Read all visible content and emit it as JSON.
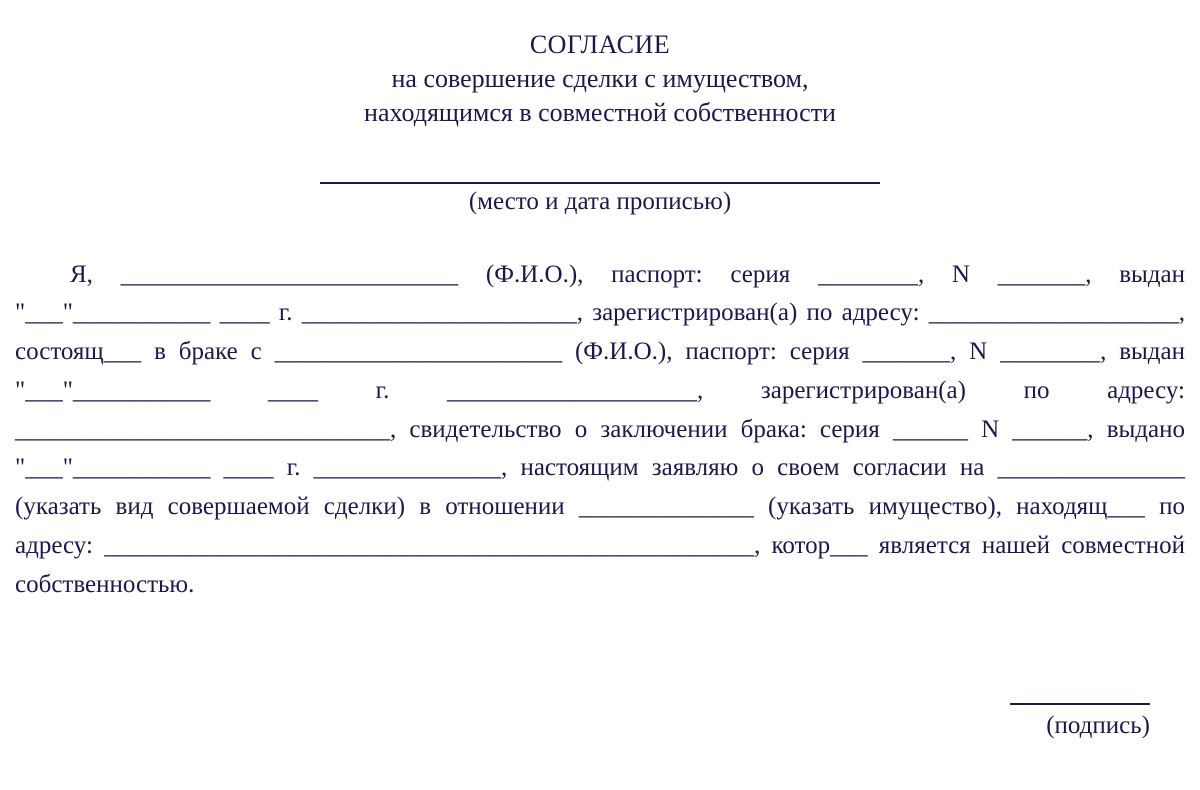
{
  "colors": {
    "text": "#1a1a4a",
    "background": "#ffffff",
    "rule": "#1a1a4a"
  },
  "typography": {
    "family": "Times New Roman",
    "title_size_pt": 20,
    "body_size_pt": 19,
    "line_height": 1.55
  },
  "title": {
    "main": "СОГЛАСИЕ",
    "sub_line1": "на совершение сделки с имуществом,",
    "sub_line2": "находящимся в совместной собственности"
  },
  "place_date": {
    "caption": "(место и дата прописью)"
  },
  "body": {
    "text": "Я, ___________________________ (Ф.И.О.), паспорт: серия ________, N _______, выдан \"___\"___________ ____ г. ______________________, зарегистрирован(а) по адресу: ____________________, состоящ___ в браке с _______________________ (Ф.И.О.), паспорт: серия _______, N ________, выдан \"___\"___________ ____ г. ____________________, зарегистрирован(а) по адресу: ______________________________, свидетельство о заключении брака: серия ______ N ______, выдано \"___\"___________ ____ г. _______________, настоящим заявляю о своем согласии на _______________ (указать вид совершаемой сделки) в отношении ______________ (указать имущество), находящ___ по адресу: ____________________________________________________, котор___ является нашей совместной собственностью."
  },
  "signature": {
    "caption": "(подпись)"
  }
}
